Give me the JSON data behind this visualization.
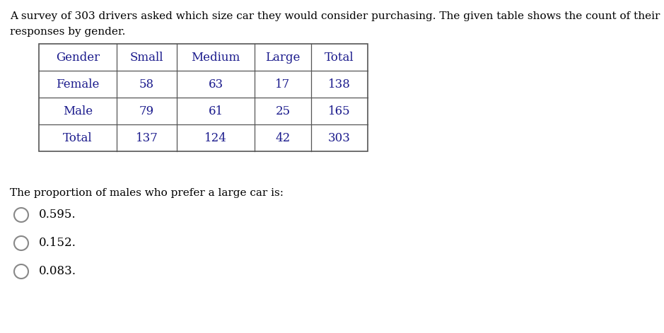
{
  "intro_text_line1": "A survey of 303 drivers asked which size car they would consider purchasing. The given table shows the count of their",
  "intro_text_line2": "responses by gender.",
  "table_headers": [
    "Gender",
    "Small",
    "Medium",
    "Large",
    "Total"
  ],
  "table_rows": [
    [
      "Female",
      "58",
      "63",
      "17",
      "138"
    ],
    [
      "Male",
      "79",
      "61",
      "25",
      "165"
    ],
    [
      "Total",
      "137",
      "124",
      "42",
      "303"
    ]
  ],
  "question_text": "The proportion of males who prefer a large car is:",
  "options": [
    "0.595.",
    "0.152.",
    "0.083."
  ],
  "bg_color": "#ffffff",
  "text_color": "#1a1a8c",
  "border_color": "#555555",
  "radio_color": "#888888",
  "font_size_intro": 11.0,
  "font_size_table": 12.0,
  "font_size_question": 11.0,
  "font_size_options": 12.0
}
